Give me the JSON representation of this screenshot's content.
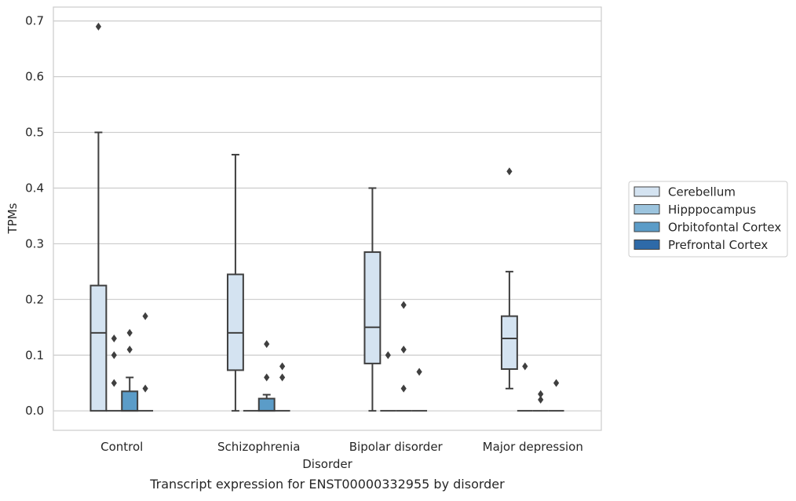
{
  "chart_data": {
    "type": "boxplot",
    "caption": "Transcript expression for ENST00000332955 by disorder",
    "xlabel": "Disorder",
    "ylabel": "TPMs",
    "ylim": [
      -0.035,
      0.725
    ],
    "yticks": [
      0.0,
      0.1,
      0.2,
      0.3,
      0.4,
      0.5,
      0.6,
      0.7
    ],
    "ytick_labels": [
      "0.0",
      "0.1",
      "0.2",
      "0.3",
      "0.4",
      "0.5",
      "0.6",
      "0.7"
    ],
    "grid": "horizontal",
    "legend_position": "right",
    "categories": [
      "Control",
      "Schizophrenia",
      "Bipolar disorder",
      "Major depression"
    ],
    "series": [
      {
        "name": "Cerebellum",
        "color": "#d4e3f1",
        "boxes": [
          {
            "whislo": 0.0,
            "q1": 0.0,
            "med": 0.14,
            "q3": 0.225,
            "whishi": 0.5,
            "fliers": [
              0.69
            ]
          },
          {
            "whislo": 0.0,
            "q1": 0.073,
            "med": 0.14,
            "q3": 0.245,
            "whishi": 0.46,
            "fliers": []
          },
          {
            "whislo": 0.0,
            "q1": 0.085,
            "med": 0.15,
            "q3": 0.285,
            "whishi": 0.4,
            "fliers": []
          },
          {
            "whislo": 0.04,
            "q1": 0.075,
            "med": 0.13,
            "q3": 0.17,
            "whishi": 0.25,
            "fliers": [
              0.43
            ]
          }
        ]
      },
      {
        "name": "Hipppocampus",
        "color": "#9cc4de",
        "boxes": [
          {
            "whislo": 0.0,
            "q1": 0.0,
            "med": 0.0,
            "q3": 0.0,
            "whishi": 0.0,
            "fliers": [
              0.05,
              0.1,
              0.13
            ]
          },
          {
            "whislo": 0.0,
            "q1": 0.0,
            "med": 0.0,
            "q3": 0.0,
            "whishi": 0.0,
            "fliers": []
          },
          {
            "whislo": 0.0,
            "q1": 0.0,
            "med": 0.0,
            "q3": 0.0,
            "whishi": 0.0,
            "fliers": [
              0.1
            ]
          },
          {
            "whislo": 0.0,
            "q1": 0.0,
            "med": 0.0,
            "q3": 0.0,
            "whishi": 0.0,
            "fliers": [
              0.08
            ]
          }
        ]
      },
      {
        "name": "Orbitofontal Cortex",
        "color": "#5b9cc8",
        "boxes": [
          {
            "whislo": 0.0,
            "q1": 0.0,
            "med": 0.0,
            "q3": 0.035,
            "whishi": 0.06,
            "fliers": [
              0.11,
              0.14
            ]
          },
          {
            "whislo": 0.0,
            "q1": 0.0,
            "med": 0.0,
            "q3": 0.022,
            "whishi": 0.029,
            "fliers": [
              0.06,
              0.12
            ]
          },
          {
            "whislo": 0.0,
            "q1": 0.0,
            "med": 0.0,
            "q3": 0.0,
            "whishi": 0.0,
            "fliers": [
              0.04,
              0.11,
              0.19
            ]
          },
          {
            "whislo": 0.0,
            "q1": 0.0,
            "med": 0.0,
            "q3": 0.0,
            "whishi": 0.0,
            "fliers": [
              0.02,
              0.03
            ]
          }
        ]
      },
      {
        "name": "Prefrontal Cortex",
        "color": "#2e6aa8",
        "boxes": [
          {
            "whislo": 0.0,
            "q1": 0.0,
            "med": 0.0,
            "q3": 0.0,
            "whishi": 0.0,
            "fliers": [
              0.04,
              0.17
            ]
          },
          {
            "whislo": 0.0,
            "q1": 0.0,
            "med": 0.0,
            "q3": 0.0,
            "whishi": 0.0,
            "fliers": [
              0.06,
              0.08
            ]
          },
          {
            "whislo": 0.0,
            "q1": 0.0,
            "med": 0.0,
            "q3": 0.0,
            "whishi": 0.0,
            "fliers": [
              0.07
            ]
          },
          {
            "whislo": 0.0,
            "q1": 0.0,
            "med": 0.0,
            "q3": 0.0,
            "whishi": 0.0,
            "fliers": [
              0.05
            ]
          }
        ]
      }
    ]
  }
}
